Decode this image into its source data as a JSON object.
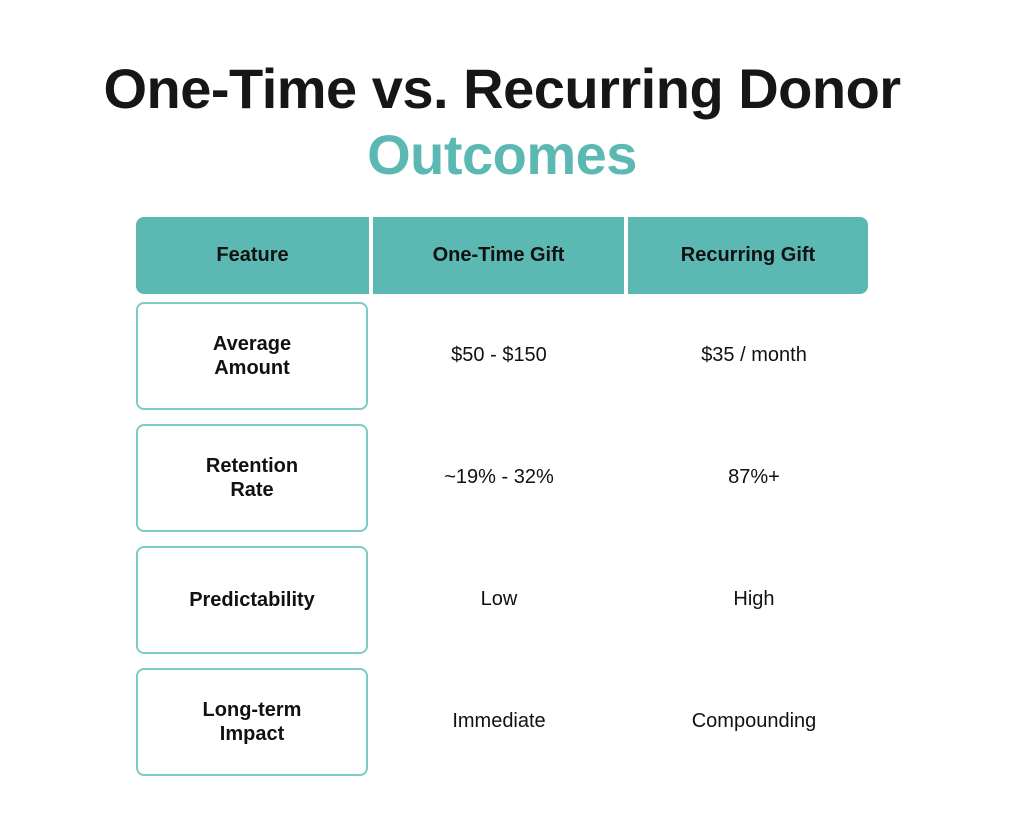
{
  "title": {
    "line1": "One-Time vs. Recurring Donor",
    "line2": "Outcomes"
  },
  "table": {
    "headers": [
      "Feature",
      "One-Time Gift",
      "Recurring Gift"
    ],
    "rows": [
      [
        "Average Amount",
        "$50 - $150",
        "$35 / month"
      ],
      [
        "Retention Rate",
        "~19% - 32%",
        "87%+"
      ],
      [
        "Predictability",
        "Low",
        "High"
      ],
      [
        "Long-term Impact",
        "Immediate",
        "Compounding"
      ]
    ]
  }
}
